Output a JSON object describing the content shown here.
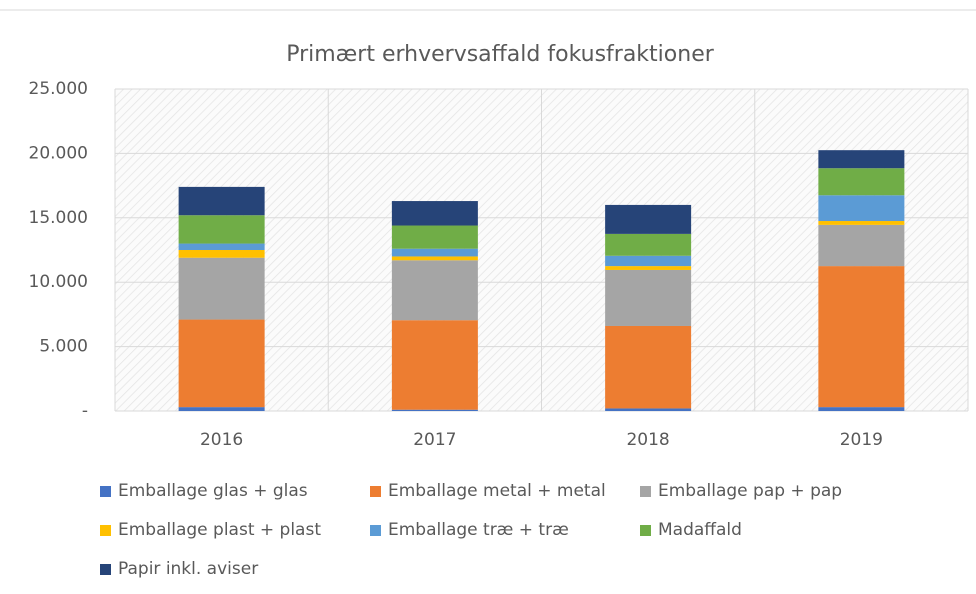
{
  "chart_data": {
    "type": "stacked_bar",
    "title": "Primært erhvervsaffald fokusfraktioner",
    "categories": [
      "2016",
      "2017",
      "2018",
      "2019"
    ],
    "series": [
      {
        "name": "Emballage glas + glas",
        "color": "#4472c4",
        "values": [
          300,
          100,
          200,
          300
        ]
      },
      {
        "name": "Emballage metal + metal",
        "color": "#ed7d31",
        "values": [
          6800,
          6950,
          6400,
          10950
        ]
      },
      {
        "name": "Emballage pap + pap",
        "color": "#a5a5a5",
        "values": [
          4800,
          4650,
          4350,
          3200
        ]
      },
      {
        "name": "Emballage plast + plast",
        "color": "#ffc000",
        "values": [
          600,
          300,
          300,
          300
        ]
      },
      {
        "name": "Emballage træ + træ",
        "color": "#5b9bd5",
        "values": [
          500,
          600,
          800,
          2000
        ]
      },
      {
        "name": "Madaffald",
        "color": "#70ad47",
        "values": [
          2200,
          1800,
          1700,
          2100
        ]
      },
      {
        "name": "Papir inkl. aviser",
        "color": "#264478",
        "values": [
          2200,
          1900,
          2250,
          1400
        ]
      }
    ],
    "ylim": [
      0,
      25000
    ],
    "yticks": [
      {
        "value": 0,
        "label": "-"
      },
      {
        "value": 5000,
        "label": "5.000"
      },
      {
        "value": 10000,
        "label": "10.000"
      },
      {
        "value": 15000,
        "label": "15.000"
      },
      {
        "value": 20000,
        "label": "20.000"
      },
      {
        "value": 25000,
        "label": "25.000"
      }
    ],
    "grid": true,
    "legend": "bottom"
  }
}
